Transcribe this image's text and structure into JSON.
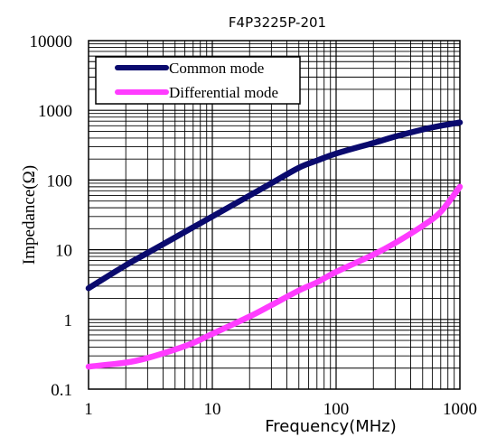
{
  "chart_data": {
    "type": "line",
    "title": "F4P3225P-201",
    "xlabel": "Frequency(MHz)",
    "ylabel": "Impedance(Ω)",
    "x_scale": "log",
    "y_scale": "log",
    "xlim": [
      1,
      1000
    ],
    "ylim": [
      0.1,
      10000
    ],
    "x_tick_labels": [
      "1",
      "10",
      "100",
      "1000"
    ],
    "y_tick_labels": [
      "0.1",
      "1",
      "10",
      "100",
      "1000",
      "10000"
    ],
    "grid": true,
    "legend_position": "top-left",
    "series": [
      {
        "name": "Common mode",
        "color": "#0a0a6e",
        "x": [
          1,
          2,
          3,
          5,
          7,
          10,
          20,
          30,
          50,
          70,
          100,
          200,
          300,
          500,
          700,
          1000
        ],
        "values": [
          2.8,
          6,
          9,
          15,
          21,
          30,
          60,
          90,
          150,
          190,
          240,
          340,
          420,
          530,
          600,
          670
        ]
      },
      {
        "name": "Differential mode",
        "color": "#ff3cff",
        "x": [
          1,
          2,
          3,
          5,
          7,
          10,
          20,
          30,
          50,
          70,
          100,
          200,
          300,
          500,
          700,
          1000
        ],
        "values": [
          0.21,
          0.24,
          0.28,
          0.37,
          0.46,
          0.62,
          1.1,
          1.6,
          2.6,
          3.4,
          4.8,
          8.5,
          12.5,
          22,
          35,
          80
        ]
      }
    ]
  }
}
